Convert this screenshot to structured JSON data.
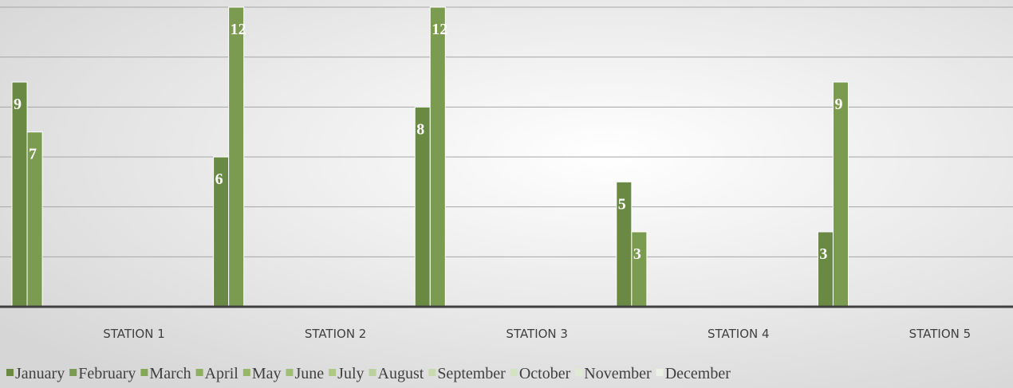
{
  "chart_data": {
    "type": "bar",
    "categories": [
      "STATION 1",
      "STATION 2",
      "STATION 3",
      "STATION 4",
      "STATION 5"
    ],
    "series": [
      {
        "name": "January",
        "color": "#6a8a43",
        "values": [
          9,
          6,
          8,
          5,
          3
        ]
      },
      {
        "name": "February",
        "color": "#7b9b50",
        "values": [
          7,
          12,
          12,
          3,
          9
        ]
      },
      {
        "name": "March",
        "color": "#84a657",
        "values": [
          null,
          null,
          null,
          null,
          null
        ]
      },
      {
        "name": "April",
        "color": "#8daf5e",
        "values": [
          null,
          null,
          null,
          null,
          null
        ]
      },
      {
        "name": "May",
        "color": "#96b767",
        "values": [
          null,
          null,
          null,
          null,
          null
        ]
      },
      {
        "name": "June",
        "color": "#a1bf74",
        "values": [
          null,
          null,
          null,
          null,
          null
        ]
      },
      {
        "name": "July",
        "color": "#aec888",
        "values": [
          null,
          null,
          null,
          null,
          null
        ]
      },
      {
        "name": "August",
        "color": "#bbd19b",
        "values": [
          null,
          null,
          null,
          null,
          null
        ]
      },
      {
        "name": "September",
        "color": "#c8daae",
        "values": [
          null,
          null,
          null,
          null,
          null
        ]
      },
      {
        "name": "October",
        "color": "#d4e2c1",
        "values": [
          null,
          null,
          null,
          null,
          null
        ]
      },
      {
        "name": "November",
        "color": "#e0ead3",
        "values": [
          null,
          null,
          null,
          null,
          null
        ]
      },
      {
        "name": "December",
        "color": "#ecf1e5",
        "values": [
          null,
          null,
          null,
          null,
          null
        ]
      }
    ],
    "ylim": [
      0,
      12
    ],
    "yticks": [
      0,
      2,
      4,
      6,
      8,
      10,
      12
    ],
    "grid": true,
    "tick_labels": false,
    "legend": "bottom"
  }
}
